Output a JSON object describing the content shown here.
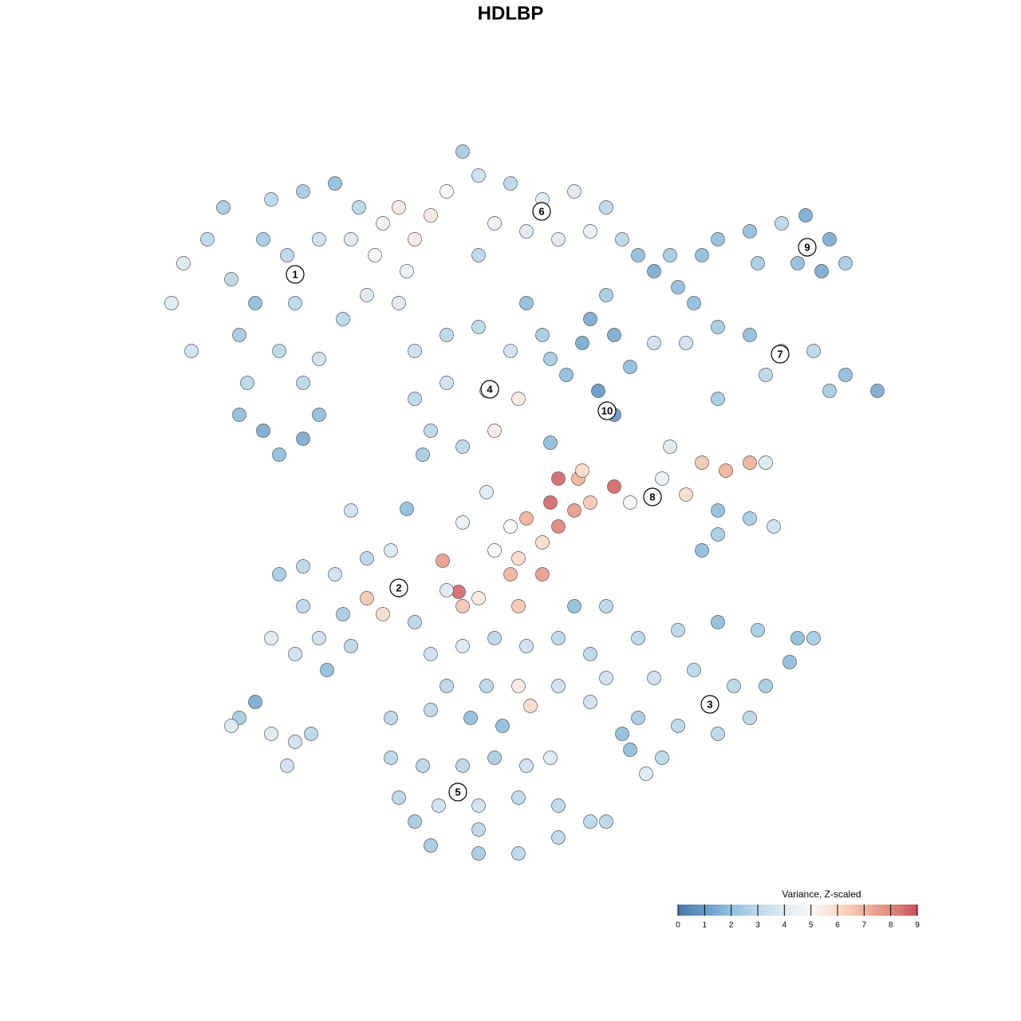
{
  "chart_data": {
    "type": "scatter",
    "title": "HDLBP",
    "xlim": [
      20,
      113
    ],
    "ylim": [
      109,
      18
    ],
    "x": [
      23,
      21.5,
      24,
      26,
      29,
      30,
      31,
      33,
      35,
      38,
      40,
      34,
      38,
      42,
      45,
      48,
      50,
      52,
      54,
      56,
      47,
      44,
      40,
      36,
      33,
      37,
      35,
      40,
      43,
      46,
      50,
      51,
      28,
      32,
      38,
      30,
      60,
      64,
      68,
      72,
      76,
      62,
      66,
      70,
      74,
      78,
      60,
      80,
      82,
      85,
      58,
      90,
      94,
      98,
      101,
      104,
      106,
      95,
      88,
      100,
      103,
      87,
      90,
      94,
      98,
      102,
      106,
      110,
      104,
      96,
      90,
      86,
      82,
      52,
      56,
      60,
      64,
      52,
      56,
      61,
      65,
      54,
      58,
      62,
      53,
      69,
      73,
      77,
      79,
      75,
      77,
      71,
      68,
      84,
      88,
      91,
      94,
      96,
      86,
      90,
      94,
      97,
      90,
      88,
      83,
      70,
      72.5,
      69,
      72,
      70,
      74,
      77,
      79,
      66,
      68,
      65,
      62,
      64,
      68,
      57.5,
      55.5,
      56,
      58,
      60,
      65,
      64,
      73,
      35,
      38,
      42,
      46,
      49,
      46,
      48,
      50,
      43,
      38,
      34,
      37,
      41,
      44,
      52,
      40,
      80,
      85,
      90,
      95,
      100,
      102,
      82,
      87,
      92,
      96,
      99,
      80,
      85,
      90,
      94,
      79,
      83,
      81,
      78,
      54,
      58,
      62,
      66,
      70,
      74,
      76,
      56,
      61,
      65,
      66.5,
      70,
      74,
      72,
      76,
      49,
      54,
      59,
      63,
      49,
      53,
      58,
      62,
      66,
      69,
      50,
      55,
      60,
      65,
      70,
      74,
      76,
      54,
      60,
      65,
      70,
      60,
      52,
      30,
      32,
      34,
      37,
      36,
      39,
      29,
      44,
      51,
      58,
      61,
      69,
      66,
      74,
      76,
      84
    ],
    "y": [
      33,
      38,
      44,
      30,
      35,
      42,
      48,
      54,
      57,
      55,
      52,
      25,
      24,
      23,
      26,
      28,
      26,
      30,
      27,
      24,
      32,
      30,
      30,
      32,
      30,
      38,
      44,
      45,
      40,
      37,
      38,
      34,
      26,
      38,
      48,
      52,
      22,
      23,
      25,
      24,
      26,
      28,
      29,
      30,
      29,
      30,
      32,
      32,
      34,
      36,
      19,
      30,
      29,
      28,
      27,
      30,
      33,
      33,
      32,
      33,
      34,
      38,
      41,
      42,
      44,
      44,
      47,
      49,
      49,
      47,
      50,
      43,
      43,
      44,
      42,
      41,
      44,
      50,
      48,
      49,
      50,
      54,
      56,
      54,
      57,
      45,
      43,
      42,
      46,
      49,
      52,
      47,
      42,
      56,
      58,
      59,
      58,
      58,
      62,
      64,
      65,
      66,
      67,
      69,
      60,
      60,
      60,
      63,
      64,
      66,
      63,
      61,
      63,
      65,
      68,
      70,
      69,
      72,
      72,
      74.2,
      70.3,
      74,
      76,
      75,
      76,
      66,
      59,
      72,
      71,
      72,
      70,
      69,
      75,
      77,
      74,
      77,
      76,
      80,
      82,
      84,
      81,
      78,
      80,
      80,
      79,
      78,
      79,
      80,
      80,
      85,
      84,
      86,
      86,
      83,
      90,
      91,
      92,
      90,
      94,
      95,
      97,
      92,
      82,
      81,
      80,
      81,
      80,
      82,
      85,
      86,
      86,
      86,
      88.5,
      86,
      88,
      76,
      76,
      90,
      89,
      90,
      91,
      95,
      96,
      96,
      95,
      96,
      95,
      100,
      101,
      101,
      100,
      101,
      103,
      103,
      106,
      107,
      107,
      105,
      104,
      103,
      90,
      88,
      92,
      93,
      96,
      92,
      91,
      64,
      63.8,
      65.5,
      61.7,
      55.5,
      38,
      40,
      37,
      32
    ],
    "values": [
      4,
      4,
      3.5,
      3,
      3,
      2.5,
      3,
      1.5,
      2,
      1.5,
      2,
      3,
      2.5,
      2,
      3,
      4.5,
      5.5,
      5.5,
      5.5,
      5,
      5,
      4,
      3.5,
      3,
      2.5,
      3,
      3,
      3.5,
      3,
      4,
      4,
      4.5,
      2.5,
      2,
      3,
      2,
      3.5,
      3,
      4,
      4,
      3,
      4.5,
      4,
      4,
      4.5,
      3,
      3,
      2,
      1.5,
      2,
      2.5,
      2,
      2,
      3,
      1.5,
      1.5,
      2.5,
      2.5,
      2,
      2,
      1.5,
      2,
      2.5,
      2,
      3,
      3,
      2,
      1.5,
      2.5,
      3,
      2.5,
      3.5,
      3.5,
      3.5,
      3,
      3,
      3.5,
      3,
      3.5,
      4,
      5.5,
      3,
      3,
      5.5,
      2.5,
      2.5,
      1.5,
      1.5,
      2,
      1,
      1,
      2,
      2.5,
      4,
      6.5,
      7,
      7,
      4,
      6,
      2,
      2.5,
      3.5,
      2.5,
      2,
      4.5,
      8.5,
      7,
      8.5,
      7.5,
      8,
      6.5,
      8.5,
      5,
      7,
      6,
      6,
      5,
      7,
      7.5,
      8.5,
      7.5,
      4,
      6.5,
      5.5,
      6.5,
      5,
      6,
      2.5,
      3,
      3.5,
      3,
      4,
      6.5,
      6,
      3,
      2.5,
      3,
      4,
      3.5,
      2,
      3,
      3,
      3.5,
      3,
      3,
      2,
      2.5,
      2,
      2.5,
      3.5,
      3,
      3,
      2.5,
      2,
      2.5,
      3,
      3,
      3,
      2,
      3,
      4,
      2,
      3.5,
      4,
      3,
      3.5,
      3,
      3,
      3.5,
      3,
      3,
      5.5,
      6,
      3.5,
      3.5,
      2,
      3,
      3,
      3,
      2,
      2,
      3,
      3,
      3,
      2.5,
      3.5,
      4,
      3,
      3.5,
      3.5,
      3,
      3,
      3,
      3,
      2.5,
      2.5,
      3,
      3,
      3,
      2.5,
      2.5,
      1.5,
      4,
      3.5,
      3.5,
      3,
      4,
      3.5,
      2,
      4.5,
      4,
      2,
      2,
      1.5,
      2.5,
      2.5
    ],
    "cluster_labels": [
      {
        "text": "1",
        "x": 37,
        "y": 34.4
      },
      {
        "text": "2",
        "x": 50,
        "y": 73.7
      },
      {
        "text": "3",
        "x": 89,
        "y": 88.3
      },
      {
        "text": "4",
        "x": 61.4,
        "y": 48.8
      },
      {
        "text": "5",
        "x": 57.4,
        "y": 99.3
      },
      {
        "text": "6",
        "x": 67.9,
        "y": 26.5
      },
      {
        "text": "7",
        "x": 97.8,
        "y": 44.4
      },
      {
        "text": "8",
        "x": 81.8,
        "y": 62.3
      },
      {
        "text": "9",
        "x": 101.2,
        "y": 31
      },
      {
        "text": "10",
        "x": 76.1,
        "y": 51.5
      }
    ],
    "colorbar": {
      "title": "Variance, Z-scaled",
      "range": [
        0,
        9
      ],
      "ticks": [
        0,
        1,
        2,
        3,
        4,
        5,
        6,
        7,
        8,
        9
      ],
      "colors": [
        "#4c78a8",
        "#6a9ac8",
        "#92c0de",
        "#bcd9ea",
        "#deebf3",
        "#f7f7f7",
        "#fadcca",
        "#f2b49c",
        "#e08a7e",
        "#c85060"
      ]
    }
  }
}
